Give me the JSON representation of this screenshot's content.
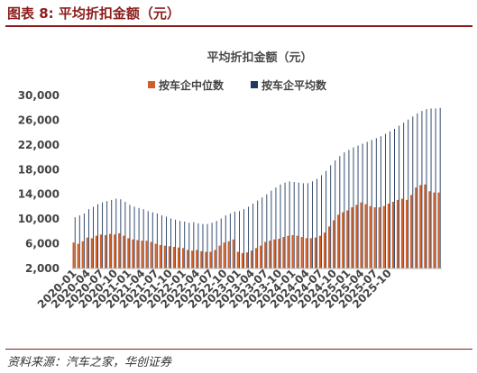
{
  "figure": {
    "title": "图表 8:  平均折扣金额（元）",
    "source": "资料来源：汽车之家，华创证券"
  },
  "chart_data": {
    "type": "bar",
    "title": "平均折扣金额（元）",
    "xlabel": "",
    "ylabel": "",
    "ylim": [
      2000,
      30000
    ],
    "yticks": [
      2000,
      6000,
      10000,
      14000,
      18000,
      22000,
      26000,
      30000
    ],
    "ytick_labels": [
      "2,000",
      "6,000",
      "10,000",
      "14,000",
      "18,000",
      "22,000",
      "26,000",
      "30,000"
    ],
    "xtick_labels": [
      "2020-01",
      "2020-04",
      "2020-07",
      "2020-10",
      "2021-01",
      "2021-04",
      "2021-07",
      "2021-10",
      "2022-01",
      "2022-04",
      "2022-07",
      "2022-10",
      "2023-01",
      "2023-04",
      "2023-07",
      "2023-10",
      "2024-01",
      "2024-04",
      "2024-07",
      "2024-10",
      "2025-01",
      "2025-04",
      "2025-07",
      "2025-10"
    ],
    "legend_position": "top-right",
    "grid": false,
    "series": [
      {
        "name": "按车企中位数",
        "color": "#d0602a",
        "values": [
          6200,
          6000,
          6400,
          7000,
          6900,
          7300,
          7500,
          7400,
          7600,
          7500,
          7700,
          7300,
          6900,
          6700,
          6600,
          6500,
          6500,
          6300,
          6000,
          5800,
          5700,
          5600,
          5500,
          5400,
          5300,
          5000,
          4900,
          5000,
          4800,
          4700,
          4700,
          5000,
          5700,
          6200,
          6400,
          6700,
          4700,
          4500,
          4600,
          4900,
          5300,
          5700,
          6300,
          6500,
          6700,
          6800,
          7100,
          7300,
          7400,
          7300,
          7100,
          6900,
          6900,
          7000,
          7300,
          7800,
          8800,
          9800,
          10700,
          11100,
          11400,
          11900,
          12300,
          12700,
          12400,
          12100,
          11900,
          11900,
          12100,
          12500,
          12800,
          13100,
          13300,
          13100,
          13900,
          15100,
          15500,
          15600,
          14500,
          14300,
          14300
        ]
      },
      {
        "name": "按车企平均数",
        "color": "#1f3a5f",
        "values": [
          10300,
          10600,
          10900,
          11600,
          12000,
          12400,
          12700,
          12900,
          13100,
          13300,
          13200,
          12800,
          12300,
          12000,
          11800,
          11600,
          11300,
          11100,
          10900,
          10600,
          10400,
          10100,
          9900,
          9700,
          9600,
          9400,
          9500,
          9300,
          9200,
          9200,
          9400,
          9700,
          10100,
          10600,
          10900,
          11200,
          11300,
          11600,
          12000,
          12500,
          13000,
          13500,
          14000,
          14600,
          15100,
          15600,
          15900,
          16100,
          16000,
          15900,
          15800,
          15800,
          16100,
          16500,
          17100,
          17800,
          18700,
          19500,
          20200,
          20800,
          21200,
          21600,
          21900,
          22200,
          22500,
          22800,
          23100,
          23400,
          23800,
          24200,
          24600,
          25100,
          25600,
          26100,
          26600,
          27100,
          27500,
          27800,
          27900,
          27900,
          28000
        ]
      }
    ]
  }
}
